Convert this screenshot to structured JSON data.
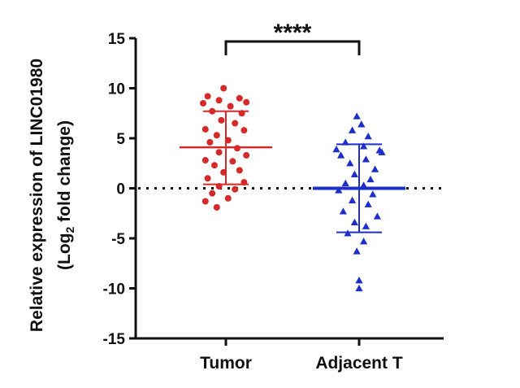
{
  "chart_data": {
    "type": "scatter",
    "subtype": "dot-plot-mean-sd",
    "ylabel_line1": "Relative expression of LINC01980",
    "ylabel_line2_prefix": "(Log",
    "ylabel_line2_sub": "2",
    "ylabel_line2_suffix": " fold change)",
    "ylim": [
      -15,
      15
    ],
    "yticks": [
      15,
      10,
      5,
      0,
      -5,
      -10,
      -15
    ],
    "ytick_labels": [
      "15",
      "10",
      "5",
      "0",
      "-5",
      "-10",
      "-15"
    ],
    "categories": [
      "Tumor",
      "Adjacent T"
    ],
    "reference_line": 0,
    "significance": {
      "label": "****",
      "between": [
        "Tumor",
        "Adjacent T"
      ]
    },
    "series": [
      {
        "name": "Tumor",
        "marker": "circle",
        "color": "#d42a2a",
        "mean": 4.1,
        "sd_upper": 7.7,
        "sd_lower": 0.4,
        "points": [
          {
            "y": 10.0,
            "jitter": -0.1
          },
          {
            "y": 9.2,
            "jitter": -0.8
          },
          {
            "y": 9.0,
            "jitter": 0.6
          },
          {
            "y": 8.8,
            "jitter": -0.3
          },
          {
            "y": 8.6,
            "jitter": 0.9
          },
          {
            "y": 8.5,
            "jitter": -1.0
          },
          {
            "y": 8.2,
            "jitter": 0.2
          },
          {
            "y": 7.7,
            "jitter": -0.6
          },
          {
            "y": 7.5,
            "jitter": 0.7
          },
          {
            "y": 6.8,
            "jitter": -0.2
          },
          {
            "y": 6.5,
            "jitter": 0.4
          },
          {
            "y": 5.9,
            "jitter": -0.9
          },
          {
            "y": 5.8,
            "jitter": 0.8
          },
          {
            "y": 5.3,
            "jitter": -0.4
          },
          {
            "y": 4.8,
            "jitter": 0.1
          },
          {
            "y": 4.6,
            "jitter": -0.7
          },
          {
            "y": 4.0,
            "jitter": 0.5
          },
          {
            "y": 3.6,
            "jitter": -0.3
          },
          {
            "y": 3.3,
            "jitter": 0.9
          },
          {
            "y": 2.8,
            "jitter": -0.9
          },
          {
            "y": 2.7,
            "jitter": 0.3
          },
          {
            "y": 2.3,
            "jitter": -0.5
          },
          {
            "y": 1.8,
            "jitter": 0.6
          },
          {
            "y": 1.6,
            "jitter": -0.1
          },
          {
            "y": 1.0,
            "jitter": -0.8
          },
          {
            "y": 0.6,
            "jitter": 0.8
          },
          {
            "y": 0.2,
            "jitter": -0.3
          },
          {
            "y": -0.1,
            "jitter": 0.4
          },
          {
            "y": -0.5,
            "jitter": -0.6
          },
          {
            "y": -1.0,
            "jitter": 0.1
          },
          {
            "y": -1.3,
            "jitter": -0.9
          },
          {
            "y": -1.9,
            "jitter": -0.4
          }
        ]
      },
      {
        "name": "Adjacent T",
        "marker": "triangle",
        "color": "#1c2fc8",
        "mean": 0.0,
        "sd_upper": 4.4,
        "sd_lower": -4.4,
        "points": [
          {
            "y": 7.2,
            "jitter": -0.1
          },
          {
            "y": 6.4,
            "jitter": 0.1
          },
          {
            "y": 5.8,
            "jitter": -0.3
          },
          {
            "y": 5.2,
            "jitter": 0.4
          },
          {
            "y": 4.6,
            "jitter": -0.6
          },
          {
            "y": 4.2,
            "jitter": 0.2
          },
          {
            "y": 3.9,
            "jitter": -1.0
          },
          {
            "y": 3.8,
            "jitter": 0.9
          },
          {
            "y": 3.6,
            "jitter": 1.0
          },
          {
            "y": 3.3,
            "jitter": -0.8
          },
          {
            "y": 2.9,
            "jitter": 0.3
          },
          {
            "y": 2.5,
            "jitter": -0.4
          },
          {
            "y": 1.9,
            "jitter": 0.7
          },
          {
            "y": 1.4,
            "jitter": -0.2
          },
          {
            "y": 0.9,
            "jitter": 0.5
          },
          {
            "y": 0.5,
            "jitter": -0.6
          },
          {
            "y": 0.3,
            "jitter": 0.2
          },
          {
            "y": -0.2,
            "jitter": -0.9
          },
          {
            "y": -0.6,
            "jitter": 0.6
          },
          {
            "y": -1.2,
            "jitter": -0.3
          },
          {
            "y": -1.6,
            "jitter": 0.4
          },
          {
            "y": -2.3,
            "jitter": -0.7
          },
          {
            "y": -2.8,
            "jitter": 0.8
          },
          {
            "y": -3.4,
            "jitter": -0.2
          },
          {
            "y": -3.8,
            "jitter": 0.3
          },
          {
            "y": -4.5,
            "jitter": -0.5
          },
          {
            "y": -5.3,
            "jitter": 0.2
          },
          {
            "y": -6.3,
            "jitter": -0.1
          },
          {
            "y": -9.2,
            "jitter": 0.0
          },
          {
            "y": -10.0,
            "jitter": 0.0
          }
        ]
      }
    ]
  }
}
